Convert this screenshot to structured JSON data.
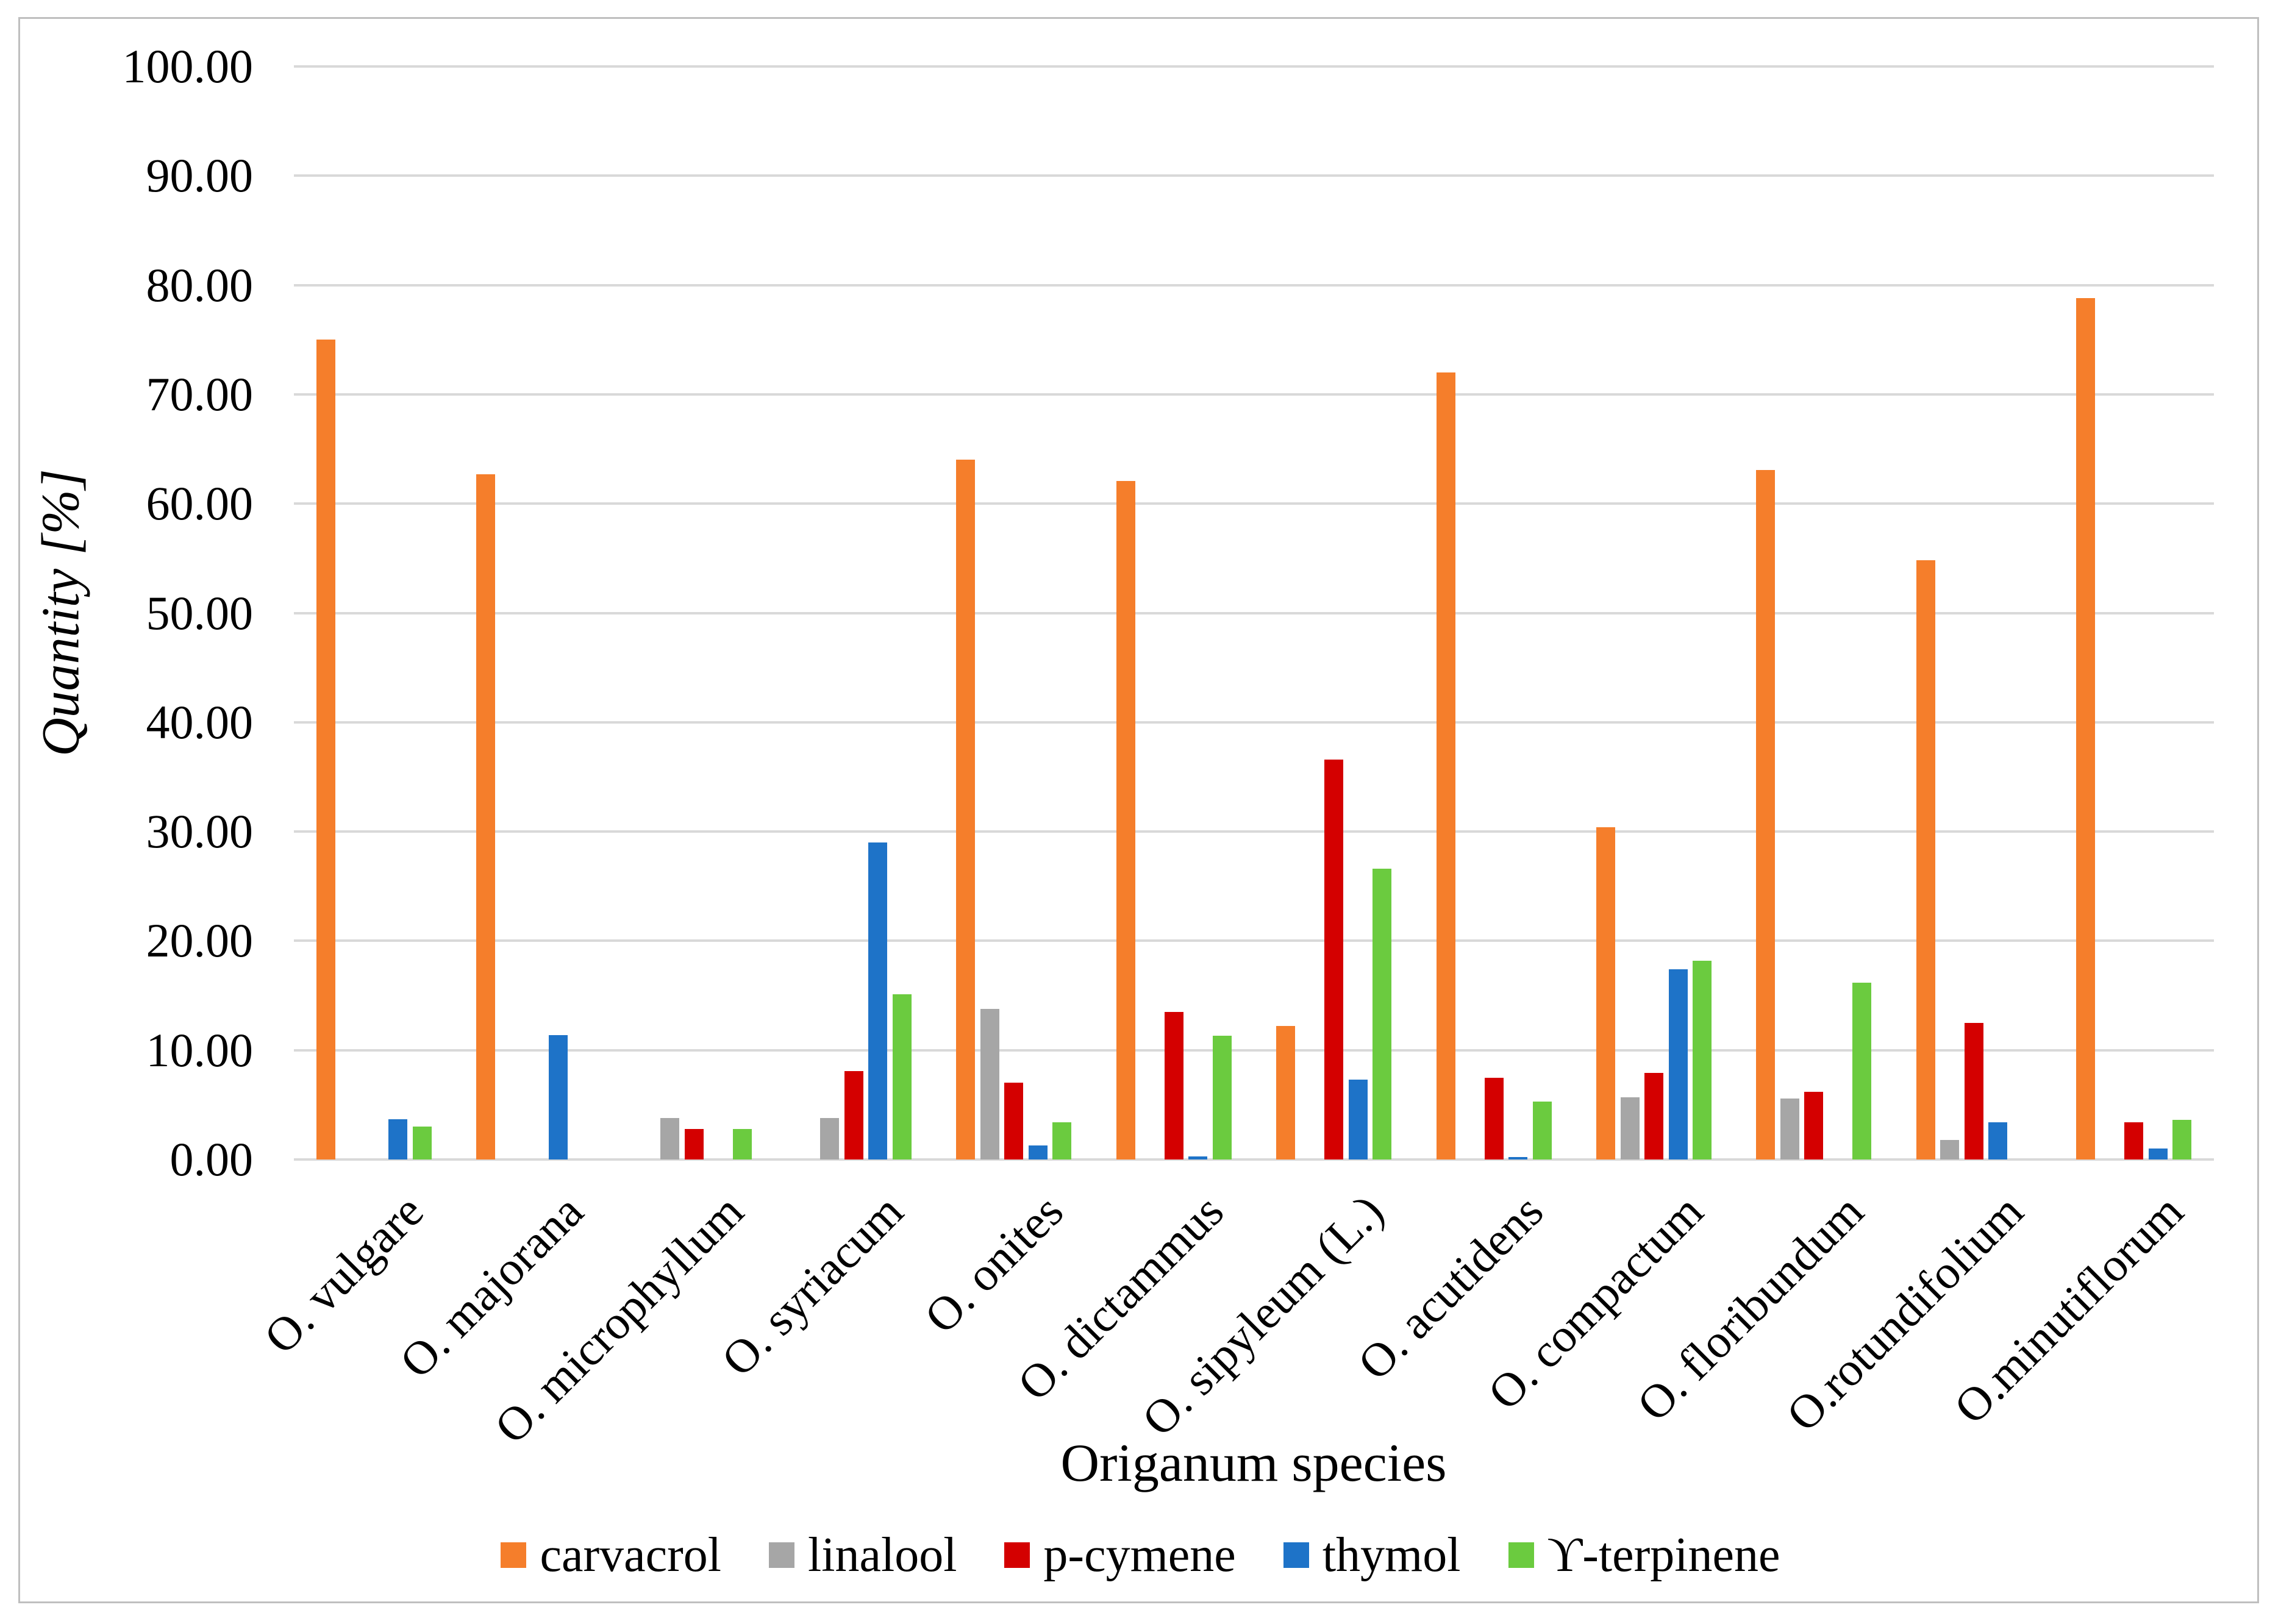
{
  "figure": {
    "background_color": "#FFFFFF",
    "border_color": "#BFBFBF",
    "gridline_color": "#D9D9D9"
  },
  "y_axis": {
    "title": "Quantity [%]",
    "tick_labels": [
      "0.00",
      "10.00",
      "20.00",
      "30.00",
      "40.00",
      "50.00",
      "60.00",
      "70.00",
      "80.00",
      "90.00",
      "100.00"
    ]
  },
  "x_axis": {
    "title": "Origanum species"
  },
  "legend": {
    "position": "bottom",
    "entries": [
      "carvacrol",
      "linalool",
      "p-cymene",
      "thymol",
      "ϒ-terpinene"
    ]
  },
  "chart_data": {
    "type": "bar",
    "title": "",
    "xlabel": "Origanum species",
    "ylabel": "Quantity [%]",
    "ylim": [
      0,
      100
    ],
    "y_tick_step": 10,
    "grid": true,
    "legend_position": "bottom",
    "categories": [
      "O. vulgare",
      "O. majorana",
      "O. microphyllum",
      "O. syriacum",
      "O. onites",
      "O. dictammus",
      "O. sipyleum (L.)",
      "O. acutidens",
      "O. compactum",
      "O. floribundum",
      "O.rotundifolium",
      "O.minutiflorum"
    ],
    "series": [
      {
        "name": "carvacrol",
        "color": "#F57E2B",
        "values": [
          75.0,
          62.7,
          0,
          0,
          64.0,
          62.1,
          12.2,
          72.0,
          30.4,
          63.1,
          54.8,
          78.8
        ]
      },
      {
        "name": "linalool",
        "color": "#A6A6A6",
        "values": [
          0,
          0,
          3.8,
          3.8,
          13.8,
          0,
          0,
          0,
          5.7,
          5.6,
          1.8,
          0
        ]
      },
      {
        "name": "p-cymene",
        "color": "#D40000",
        "values": [
          0,
          0,
          2.8,
          8.1,
          7.0,
          13.5,
          36.6,
          7.5,
          7.9,
          6.2,
          12.5,
          3.4
        ]
      },
      {
        "name": "thymol",
        "color": "#1E73C8",
        "values": [
          3.7,
          11.4,
          0,
          29.0,
          1.3,
          0.3,
          7.3,
          0.2,
          17.4,
          0,
          3.4,
          1.0
        ]
      },
      {
        "name": "ϒ-terpinene",
        "color": "#6BCB3F",
        "values": [
          3.0,
          0,
          2.8,
          15.1,
          3.4,
          11.3,
          26.6,
          5.3,
          18.2,
          16.2,
          0,
          3.6
        ]
      }
    ]
  }
}
